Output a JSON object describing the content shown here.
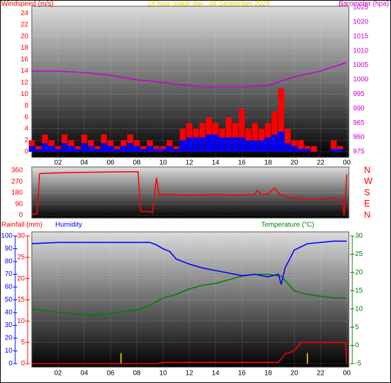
{
  "chart_data": [
    {
      "type": "line",
      "title": "24 hour graph day : 04 September 2025",
      "y_label": "Windspeed (m/s)",
      "y2_label": "Barometer (hpa)",
      "xlim": [
        0,
        24
      ],
      "xticks": [
        {
          "value": 2,
          "label": "02"
        },
        {
          "value": 4,
          "label": "04"
        },
        {
          "value": 6,
          "label": "06"
        },
        {
          "value": 8,
          "label": "08"
        },
        10,
        12,
        14,
        16,
        18,
        20,
        22,
        {
          "value": 24,
          "label": "00"
        }
      ],
      "ylim": [
        0,
        25
      ],
      "yticks": [
        0,
        2,
        4,
        6,
        8,
        10,
        12,
        14,
        16,
        18,
        20,
        22,
        24
      ],
      "y2lim": [
        975,
        1025
      ],
      "y2ticks": [
        975,
        980,
        985,
        990,
        995,
        1000,
        1005,
        1010,
        1015,
        1020,
        1025
      ],
      "grid": true,
      "series": [
        {
          "color": "#ff0000",
          "kind": "columns",
          "x": [
            0,
            0.5,
            1,
            1.5,
            2,
            2.5,
            3,
            3.5,
            4,
            4.5,
            5,
            5.5,
            6,
            6.5,
            7,
            7.5,
            8,
            8.5,
            9,
            9.5,
            10,
            10.5,
            11,
            11.5,
            12,
            12.5,
            13,
            13.5,
            14,
            14.5,
            15,
            15.5,
            16,
            16.5,
            17,
            17.5,
            18,
            18.5,
            19,
            19.5,
            20,
            20.5,
            21,
            21.5,
            22,
            22.5,
            23,
            23.5,
            24
          ],
          "values": [
            2,
            1,
            3,
            2,
            1,
            3,
            2,
            1,
            3,
            2,
            1,
            3,
            2,
            1,
            2,
            3,
            2,
            1,
            2,
            1,
            1,
            2,
            1,
            4,
            5,
            4,
            5,
            6,
            5,
            4,
            6,
            5,
            7.5,
            4,
            5,
            4,
            5,
            7,
            11,
            4,
            2,
            2,
            1,
            1,
            0,
            0,
            2,
            1,
            0
          ]
        },
        {
          "color": "#0000ff",
          "kind": "columns",
          "x": [
            0,
            0.5,
            1,
            1.5,
            2,
            2.5,
            3,
            3.5,
            4,
            4.5,
            5,
            5.5,
            6,
            6.5,
            7,
            7.5,
            8,
            8.5,
            9,
            9.5,
            10,
            10.5,
            11,
            11.5,
            12,
            12.5,
            13,
            13.5,
            14,
            14.5,
            15,
            15.5,
            16,
            16.5,
            17,
            17.5,
            18,
            18.5,
            19,
            19.5,
            20,
            20.5,
            21,
            21.5,
            22,
            22.5,
            23,
            23.5,
            24
          ],
          "values": [
            1,
            0.5,
            1.5,
            1,
            0.5,
            1.5,
            1,
            0.5,
            1.5,
            1,
            0.5,
            1.5,
            1,
            0.5,
            1,
            1.5,
            1,
            0.5,
            1,
            0.5,
            0.5,
            1,
            0.5,
            2,
            2.5,
            2.5,
            2.5,
            3,
            3,
            2.5,
            2.5,
            2.5,
            2.5,
            2,
            2,
            2,
            2.5,
            3,
            3.5,
            1.5,
            1,
            0.5,
            0.5,
            0,
            0,
            0,
            0.5,
            0.5,
            0
          ]
        },
        {
          "color": "#cc00cc",
          "kind": "line",
          "axis": "y2",
          "x": [
            0,
            2,
            4,
            6,
            8,
            10,
            12,
            13,
            14,
            16,
            17,
            18,
            19,
            20,
            22,
            24
          ],
          "values": [
            1003,
            1003,
            1002.5,
            1001.5,
            1000,
            999,
            998,
            997.5,
            997.5,
            997.5,
            997.8,
            998,
            999.5,
            1001,
            1003,
            1006
          ]
        }
      ]
    },
    {
      "type": "line",
      "xlim": [
        0,
        24
      ],
      "ylim": [
        0,
        360
      ],
      "yticks": [
        0,
        90,
        180,
        270,
        360
      ],
      "y2lim": [
        0,
        360
      ],
      "y2ticks": [
        {
          "value": 360,
          "label": "N"
        },
        {
          "value": 270,
          "label": "W"
        },
        {
          "value": 180,
          "label": "S"
        },
        {
          "value": 90,
          "label": "E"
        },
        {
          "value": 0,
          "label": "N"
        }
      ],
      "grid": true,
      "series": [
        {
          "color": "#ff0000",
          "kind": "line",
          "x": [
            0,
            0.4,
            0.6,
            2,
            4,
            6,
            8,
            8.1,
            8.3,
            9,
            9.2,
            9.5,
            9.7,
            10,
            12,
            14,
            16,
            17,
            17.2,
            17.5,
            18,
            18.5,
            18.8,
            19,
            20,
            21,
            22,
            23,
            23.6,
            23.8,
            24
          ],
          "values": [
            10,
            10,
            335,
            340,
            345,
            348,
            350,
            350,
            30,
            30,
            20,
            300,
            160,
            170,
            160,
            165,
            160,
            170,
            200,
            165,
            170,
            220,
            180,
            160,
            140,
            125,
            130,
            140,
            130,
            0,
            330
          ]
        }
      ]
    },
    {
      "type": "line",
      "y_label": "Rainfall (mm)",
      "y3_label": "Humidity",
      "y2_label": "Temperature (°C)",
      "xlim": [
        0,
        24
      ],
      "xticks": [
        {
          "value": 2,
          "label": "02"
        },
        {
          "value": 4,
          "label": "04"
        },
        {
          "value": 6,
          "label": "06"
        },
        {
          "value": 8,
          "label": "08"
        },
        10,
        12,
        14,
        16,
        18,
        20,
        22,
        {
          "value": 24,
          "label": "00"
        }
      ],
      "ylim": [
        0,
        30
      ],
      "yticks": [
        0,
        5,
        10,
        15,
        20,
        25,
        30
      ],
      "y3lim": [
        0,
        100
      ],
      "y3ticks": [
        0,
        10,
        20,
        30,
        40,
        50,
        60,
        70,
        80,
        90,
        100
      ],
      "y2lim": [
        -5,
        30
      ],
      "y2ticks": [
        -5,
        0,
        5,
        10,
        15,
        20,
        25,
        30
      ],
      "grid": true,
      "series": [
        {
          "color": "#c8b400",
          "kind": "spikes",
          "x": [
            6.8,
            21
          ],
          "values": [
            2.5,
            2.5
          ]
        },
        {
          "color": "#008000",
          "kind": "line",
          "axis": "y2",
          "x": [
            0,
            2,
            4,
            4.5,
            6,
            8,
            9,
            10,
            11,
            12,
            13,
            14,
            15,
            16,
            17,
            18,
            19,
            19.5,
            20,
            21,
            22,
            23,
            24
          ],
          "values": [
            10,
            9,
            8.5,
            8.2,
            8.8,
            9.7,
            11,
            13,
            14,
            15.5,
            16.5,
            17,
            18,
            19,
            19.5,
            19.5,
            19,
            17,
            15,
            14,
            13.5,
            13,
            13
          ]
        },
        {
          "color": "#0000ff",
          "kind": "line",
          "axis": "y3",
          "x": [
            0,
            2,
            4,
            6,
            8,
            9,
            9.5,
            10,
            10.5,
            11,
            12,
            13,
            14,
            15,
            16,
            17,
            18,
            18.8,
            19,
            19.3,
            20,
            21,
            22,
            23,
            24
          ],
          "values": [
            94,
            95,
            95,
            95,
            95,
            95,
            93,
            90,
            88,
            82,
            78,
            75,
            73,
            71,
            69,
            70,
            68,
            70,
            62,
            75,
            89,
            94,
            95,
            96,
            96
          ]
        },
        {
          "color": "#ff0000",
          "kind": "line",
          "x": [
            0,
            9.5,
            10,
            18.8,
            19.3,
            20,
            20.5,
            23.9,
            24
          ],
          "values": [
            0,
            0,
            0.3,
            0.3,
            2.3,
            3,
            5,
            5,
            0
          ]
        }
      ]
    }
  ]
}
